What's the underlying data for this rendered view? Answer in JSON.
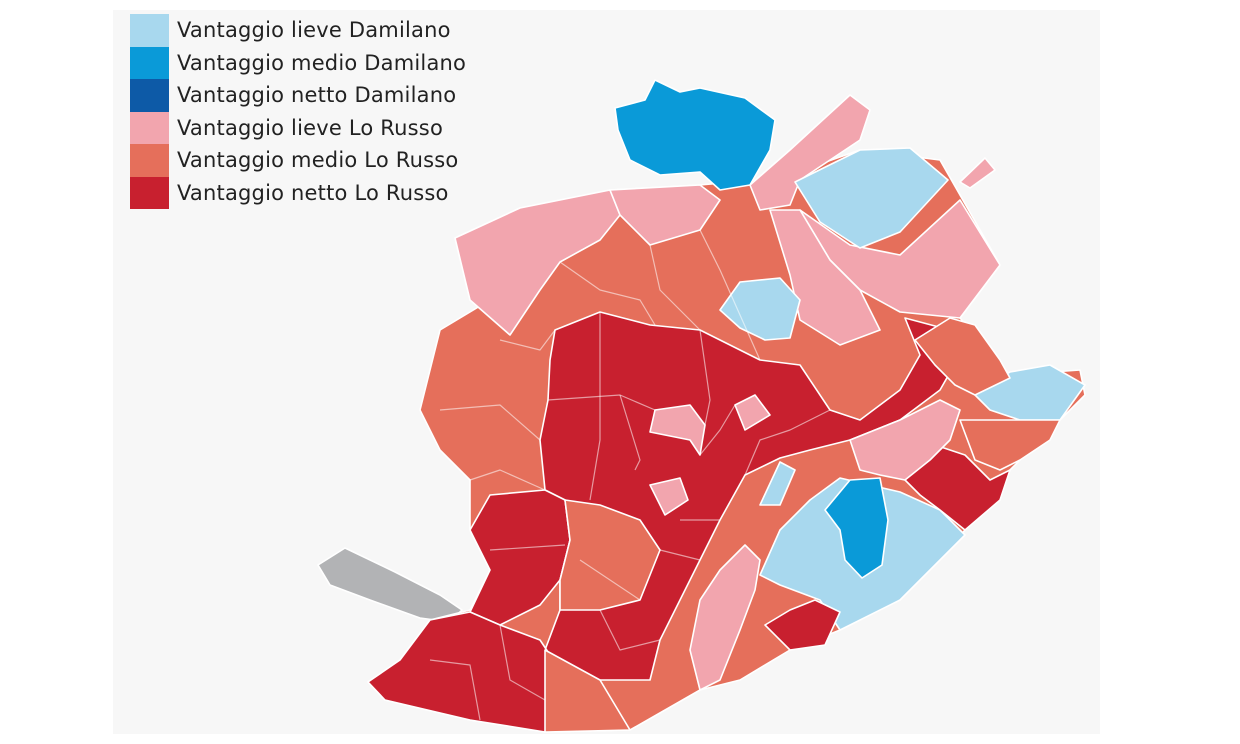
{
  "legend": {
    "items": [
      {
        "label": "Vantaggio lieve Damilano",
        "color": "#a8d8ee"
      },
      {
        "label": "Vantaggio medio Damilano",
        "color": "#0a9ad8"
      },
      {
        "label": "Vantaggio netto Damilano",
        "color": "#0d5aa7"
      },
      {
        "label": "Vantaggio lieve Lo Russo",
        "color": "#f2a5ae"
      },
      {
        "label": "Vantaggio medio Lo Russo",
        "color": "#e56f5b"
      },
      {
        "label": "Vantaggio netto Lo Russo",
        "color": "#c8202f"
      }
    ]
  },
  "map": {
    "no_data_color": "#b2b3b5"
  }
}
